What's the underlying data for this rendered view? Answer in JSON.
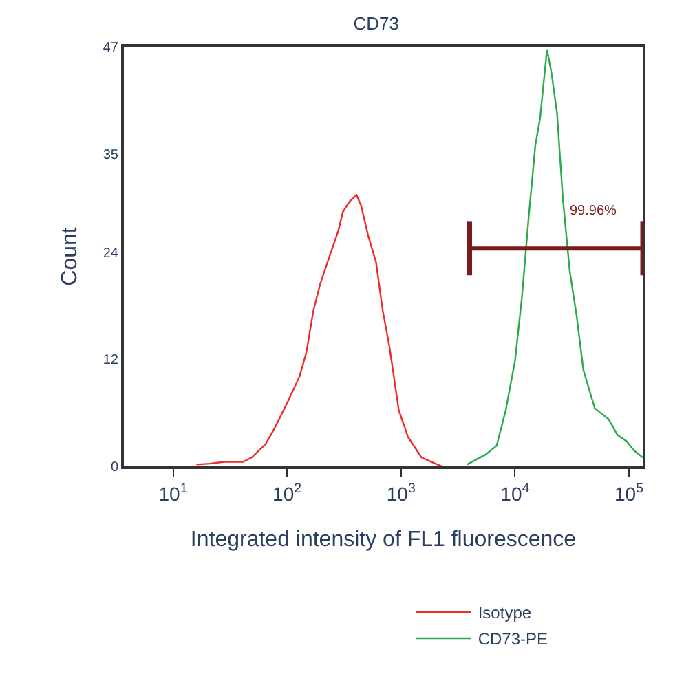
{
  "chart_data": {
    "type": "line",
    "title": "CD73",
    "xlabel": "Integrated intensity of FL1 fluorescence",
    "ylabel": "Count",
    "log": "x",
    "xlim": [
      3.7,
      132000
    ],
    "xticks": [
      {
        "value": 10,
        "label": "10$^{1}$"
      },
      {
        "value": 100,
        "label": "10$^{2}$"
      },
      {
        "value": 1000,
        "label": "10$^{3}$"
      },
      {
        "value": 10000,
        "label": "10$^{4}$"
      },
      {
        "value": 100000,
        "label": "10$^{5}$"
      }
    ],
    "ylim": [
      0,
      47
    ],
    "yticks": [
      0,
      12,
      24,
      35,
      47
    ],
    "legend": "bottom",
    "series": [
      {
        "name": "Isotype",
        "color": "#ee2a2a",
        "x": [
          16,
          21,
          28,
          41,
          49,
          65,
          78,
          102,
          129,
          148,
          170,
          195,
          234,
          282,
          309,
          355,
          407,
          447,
          513,
          603,
          692,
          794,
          955,
          1150,
          1510,
          2000,
          2290
        ],
        "values": [
          0.2,
          0.3,
          0.5,
          0.5,
          1.0,
          2.5,
          4.3,
          7.3,
          10.1,
          12.8,
          17.4,
          20.4,
          23.4,
          26.4,
          28.5,
          29.7,
          30.4,
          29.2,
          25.9,
          22.9,
          17.4,
          13.3,
          6.3,
          3.3,
          1.0,
          0.3,
          0
        ]
      },
      {
        "name": "CD73-PE",
        "color": "#2aaa48",
        "x": [
          3800,
          5500,
          6900,
          8300,
          10000,
          11500,
          13200,
          15100,
          16600,
          19100,
          20900,
          23400,
          26300,
          30200,
          34700,
          39800,
          50100,
          66100,
          79400,
          95500,
          110000,
          132000
        ],
        "values": [
          0.2,
          1.3,
          2.3,
          6.3,
          11.8,
          18.9,
          28.0,
          36.0,
          39.0,
          46.7,
          44.1,
          39.5,
          30.0,
          21.9,
          16.9,
          10.8,
          6.5,
          5.3,
          3.5,
          2.8,
          1.8,
          1.0
        ]
      },
      {
        "color": "#7b1c1c",
        "x": [
          4000,
          132000
        ],
        "values": [
          24.4,
          24.4
        ],
        "errors": [
          3,
          3
        ]
      }
    ],
    "annotations": [
      "99.96%"
    ]
  }
}
